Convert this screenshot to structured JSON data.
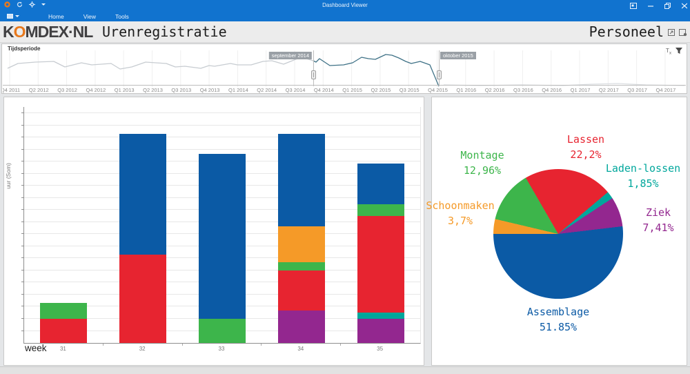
{
  "window": {
    "title": "Dashboard Viewer",
    "menu": [
      "Home",
      "View",
      "Tools"
    ]
  },
  "header": {
    "logo": {
      "pre": "K",
      "o": "O",
      "post": "MDEX·NL"
    },
    "app_title": "Urenregistratie",
    "page_title": "Personeel"
  },
  "filter_panel": {
    "title": "Tijdsperiode",
    "clear_filter_label": "T",
    "clear_filter_sub": "x",
    "range_start": "september 2014",
    "range_end": "oktober 2015"
  },
  "colors": {
    "assemblage_blue": "#0b5aa5",
    "lassen_red": "#e72430",
    "montage_green": "#3db54b",
    "schoonmaken_orange": "#f59a28",
    "ladenlossen_teal": "#00a79c",
    "ziek_purple": "#93278f",
    "accent_orange": "#e8791d",
    "titlebar_blue": "#1173cf",
    "selection_teal": "#3e7186"
  },
  "chart_data": [
    {
      "type": "line",
      "name": "tijdsperiode-range-selector",
      "x_labels": [
        "Q4 2011",
        "Q2 2012",
        "Q3 2012",
        "Q4 2012",
        "Q1 2013",
        "Q2 2013",
        "Q3 2013",
        "Q4 2013",
        "Q1 2014",
        "Q2 2014",
        "Q3 2014",
        "Q4 2014",
        "Q1 2015",
        "Q2 2015",
        "Q3 2015",
        "Q4 2015",
        "Q1 2016",
        "Q2 2016",
        "Q3 2016",
        "Q4 2016",
        "Q1 2017",
        "Q2 2017",
        "Q3 2017",
        "Q4 2017"
      ],
      "selection": {
        "start": "september 2014",
        "end": "oktober 2015"
      },
      "series": [
        {
          "name": "unselected-before",
          "color": "#c7ccd1",
          "points": [
            "7,26",
            "22,19",
            "47,17",
            "74,16",
            "90,24",
            "114,18",
            "129,21",
            "157,19",
            "170,27",
            "187,24",
            "207,17",
            "237,19",
            "250,24",
            "264,23",
            "287,26",
            "299,22",
            "307,23",
            "330,19",
            "340,21",
            "360,21",
            "377,16",
            "390,15",
            "407,20",
            "427,12",
            "440,12",
            "450,15"
          ]
        },
        {
          "name": "selected",
          "color": "#3e7186",
          "points": [
            "450,15",
            "454,17",
            "459,12",
            "474,22",
            "494,21",
            "507,18",
            "520,10",
            "530,12",
            "540,13",
            "555,6",
            "564,7",
            "574,11",
            "584,16",
            "592,19",
            "605,16",
            "619,21",
            "632,52"
          ]
        },
        {
          "name": "unselected-after",
          "color": "#dcdfe2",
          "points": [
            "639,50",
            "692,51",
            "752,50",
            "812,51",
            "852,49",
            "892,48",
            "932,50",
            "988,51"
          ]
        }
      ]
    },
    {
      "type": "bar",
      "stacked": true,
      "xlabel": "week",
      "ylabel": "uur (Som)",
      "categories": [
        "31",
        "32",
        "33",
        "34",
        "35"
      ],
      "ylim": [
        0,
        57
      ],
      "ytick_step": 3,
      "grid": true,
      "series": [
        {
          "name": "Ziek",
          "color": "#93278f",
          "values": [
            0,
            0,
            0,
            8,
            6
          ]
        },
        {
          "name": "Laden-lossen",
          "color": "#00a79c",
          "values": [
            0,
            0,
            0,
            0,
            1.5
          ]
        },
        {
          "name": "Lassen",
          "color": "#e72430",
          "values": [
            6,
            22,
            0,
            10,
            24
          ]
        },
        {
          "name": "Montage",
          "color": "#3db54b",
          "values": [
            4,
            0,
            6,
            2,
            3
          ]
        },
        {
          "name": "Schoonmaken",
          "color": "#f59a28",
          "values": [
            0,
            0,
            0,
            9,
            0
          ]
        },
        {
          "name": "Assemblage",
          "color": "#0b5aa5",
          "values": [
            0,
            30,
            41,
            23,
            10
          ]
        }
      ]
    },
    {
      "type": "pie",
      "start_angle_deg": 270,
      "slices": [
        {
          "label": "Schoonmaken",
          "value": 3.7,
          "display": "3,7%",
          "color": "#f59a28",
          "label_pos": {
            "x": 41,
            "y": 168
          }
        },
        {
          "label": "Montage",
          "value": 12.96,
          "display": "12,96%",
          "color": "#3db54b",
          "label_pos": {
            "x": 73,
            "y": 95
          }
        },
        {
          "label": "Lassen",
          "value": 22.2,
          "display": "22,2%",
          "color": "#e72430",
          "label_pos": {
            "x": 223,
            "y": 72
          }
        },
        {
          "label": "Laden-lossen",
          "value": 1.85,
          "display": "1,85%",
          "color": "#00a79c",
          "label_pos": {
            "x": 306,
            "y": 114
          }
        },
        {
          "label": "Ziek",
          "value": 7.41,
          "display": "7,41%",
          "color": "#93278f",
          "label_pos": {
            "x": 328,
            "y": 178
          }
        },
        {
          "label": "Assemblage",
          "value": 51.85,
          "display": "51.85%",
          "color": "#0b5aa5",
          "label_pos": {
            "x": 183,
            "y": 322
          }
        }
      ]
    }
  ]
}
